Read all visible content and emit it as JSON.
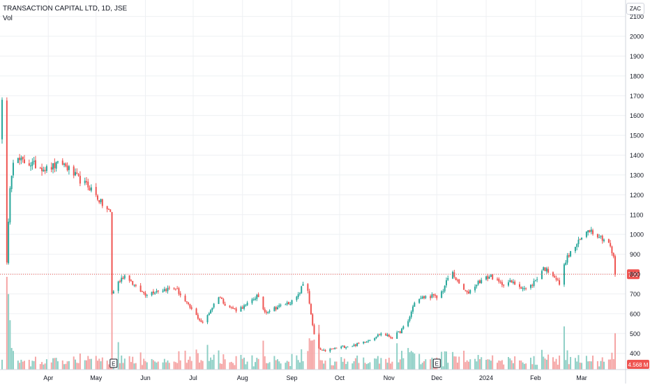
{
  "legend": {
    "symbol_line": "TRANSACTION CAPITAL LTD, 1D, JSE",
    "volume_label": "Vol"
  },
  "currency_badge": "ZAC",
  "price_badge": "799",
  "volume_badge": "4.568 M",
  "earnings_marker": "E",
  "colors": {
    "up": "#26a69a",
    "down": "#ef5350",
    "up_volume": "#8dcfc5",
    "down_volume": "#f5a4a4",
    "grid": "#eef0f3",
    "axis_text": "#131722",
    "price_line": "#ef5350"
  },
  "chart_data": {
    "type": "candlestick",
    "title": "TRANSACTION CAPITAL LTD, 1D, JSE",
    "y_axis": {
      "ticks": [
        400,
        500,
        600,
        700,
        800,
        900,
        1000,
        1100,
        1200,
        1300,
        1400,
        1500,
        1600,
        1700,
        1800,
        1900,
        2000,
        2100
      ],
      "range": [
        330,
        2110
      ],
      "unit": "ZAC"
    },
    "x_axis": {
      "labels": [
        "Apr",
        "May",
        "Jun",
        "Jul",
        "Aug",
        "Sep",
        "Oct",
        "Nov",
        "Dec",
        "2024",
        "Feb",
        "Mar"
      ],
      "label_dates": [
        "2023-04-01",
        "2023-05-01",
        "2023-06-01",
        "2023-07-01",
        "2023-08-01",
        "2023-09-01",
        "2023-10-01",
        "2023-11-01",
        "2023-12-01",
        "2024-01-01",
        "2024-02-01",
        "2024-03-01"
      ],
      "range": [
        "2023-03-03",
        "2024-03-22"
      ]
    },
    "last_price": 799,
    "last_volume": "4.568 M",
    "earnings_dates": [
      "2023-05-12",
      "2023-12-01"
    ],
    "price_path": [
      [
        "2023-03-03",
        1700
      ],
      [
        "2023-03-06",
        850
      ],
      [
        "2023-03-08",
        1250
      ],
      [
        "2023-03-10",
        1380
      ],
      [
        "2023-03-20",
        1360
      ],
      [
        "2023-03-31",
        1330
      ],
      [
        "2023-04-10",
        1360
      ],
      [
        "2023-04-20",
        1280
      ],
      [
        "2023-04-28",
        1230
      ],
      [
        "2023-05-05",
        1150
      ],
      [
        "2023-05-10",
        1110
      ],
      [
        "2023-05-11",
        700
      ],
      [
        "2023-05-15",
        760
      ],
      [
        "2023-05-20",
        800
      ],
      [
        "2023-05-26",
        730
      ],
      [
        "2023-06-01",
        700
      ],
      [
        "2023-06-10",
        720
      ],
      [
        "2023-06-20",
        730
      ],
      [
        "2023-06-26",
        660
      ],
      [
        "2023-07-03",
        590
      ],
      [
        "2023-07-07",
        550
      ],
      [
        "2023-07-12",
        620
      ],
      [
        "2023-07-17",
        690
      ],
      [
        "2023-07-22",
        640
      ],
      [
        "2023-07-28",
        620
      ],
      [
        "2023-08-03",
        640
      ],
      [
        "2023-08-10",
        690
      ],
      [
        "2023-08-15",
        610
      ],
      [
        "2023-08-22",
        630
      ],
      [
        "2023-08-28",
        650
      ],
      [
        "2023-09-01",
        660
      ],
      [
        "2023-09-05",
        690
      ],
      [
        "2023-09-08",
        750
      ],
      [
        "2023-09-11",
        720
      ],
      [
        "2023-09-13",
        590
      ],
      [
        "2023-09-16",
        440
      ],
      [
        "2023-09-20",
        410
      ],
      [
        "2023-10-01",
        430
      ],
      [
        "2023-10-10",
        440
      ],
      [
        "2023-10-20",
        470
      ],
      [
        "2023-10-27",
        500
      ],
      [
        "2023-11-03",
        480
      ],
      [
        "2023-11-08",
        510
      ],
      [
        "2023-11-13",
        560
      ],
      [
        "2023-11-17",
        660
      ],
      [
        "2023-11-22",
        680
      ],
      [
        "2023-11-28",
        690
      ],
      [
        "2023-12-01",
        680
      ],
      [
        "2023-12-05",
        720
      ],
      [
        "2023-12-10",
        820
      ],
      [
        "2023-12-14",
        760
      ],
      [
        "2023-12-20",
        700
      ],
      [
        "2023-12-27",
        760
      ],
      [
        "2024-01-04",
        790
      ],
      [
        "2024-01-10",
        750
      ],
      [
        "2024-01-16",
        760
      ],
      [
        "2024-01-22",
        740
      ],
      [
        "2024-01-27",
        720
      ],
      [
        "2024-02-01",
        770
      ],
      [
        "2024-02-06",
        830
      ],
      [
        "2024-02-12",
        800
      ],
      [
        "2024-02-16",
        750
      ],
      [
        "2024-02-20",
        870
      ],
      [
        "2024-02-24",
        920
      ],
      [
        "2024-03-01",
        980
      ],
      [
        "2024-03-05",
        1030
      ],
      [
        "2024-03-11",
        1000
      ],
      [
        "2024-03-16",
        970
      ],
      [
        "2024-03-18",
        960
      ],
      [
        "2024-03-21",
        880
      ],
      [
        "2024-03-22",
        799
      ]
    ],
    "volume_scale_max": "7 M",
    "grid": true,
    "legend_position": "top-left"
  }
}
